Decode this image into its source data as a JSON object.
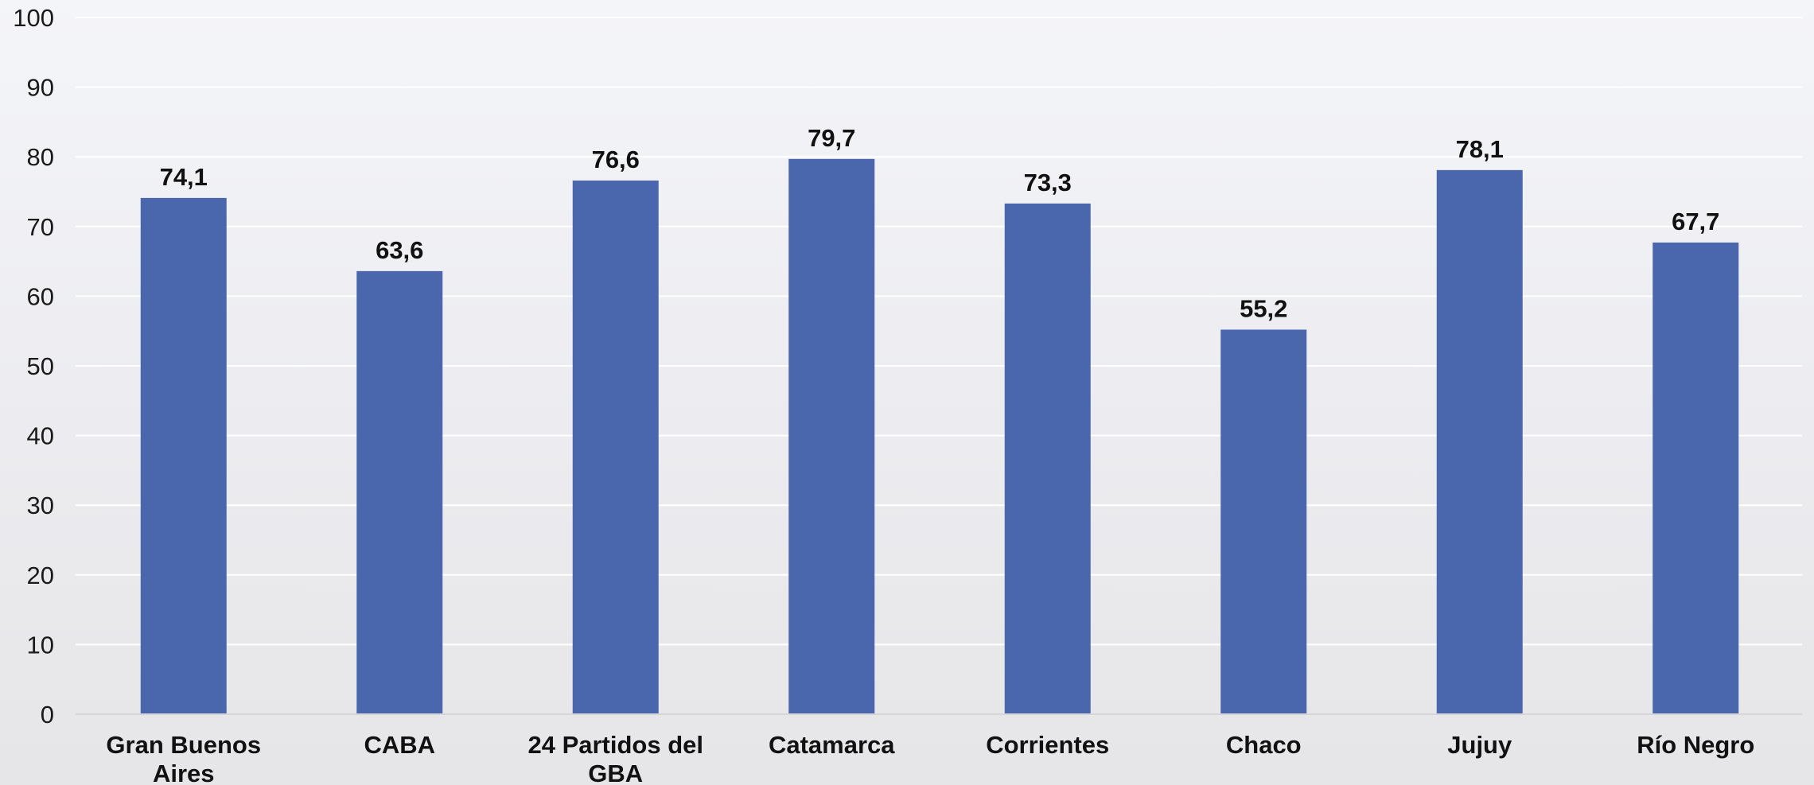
{
  "colors": {
    "bar": "#4a67ae",
    "grid": "#ffffff",
    "axis": "#d6d6d9",
    "text": "#111111"
  },
  "chart_data": {
    "type": "bar",
    "categories": [
      "Gran Buenos Aires",
      "CABA",
      "24 Partidos del GBA",
      "Catamarca",
      "Corrientes",
      "Chaco",
      "Jujuy",
      "Río Negro"
    ],
    "category_lines": [
      [
        "Gran Buenos",
        "Aires"
      ],
      [
        "CABA"
      ],
      [
        "24 Partidos del",
        "GBA"
      ],
      [
        "Catamarca"
      ],
      [
        "Corrientes"
      ],
      [
        "Chaco"
      ],
      [
        "Jujuy"
      ],
      [
        "Río Negro"
      ]
    ],
    "values": [
      74.1,
      63.6,
      76.6,
      79.7,
      73.3,
      55.2,
      78.1,
      67.7
    ],
    "value_labels": [
      "74,1",
      "63,6",
      "76,6",
      "79,7",
      "73,3",
      "55,2",
      "78,1",
      "67,7"
    ],
    "ylim": [
      0,
      100
    ],
    "yticks": [
      0,
      10,
      20,
      30,
      40,
      50,
      60,
      70,
      80,
      90,
      100
    ],
    "title": "",
    "xlabel": "",
    "ylabel": "",
    "grid": true,
    "legend": "none"
  }
}
